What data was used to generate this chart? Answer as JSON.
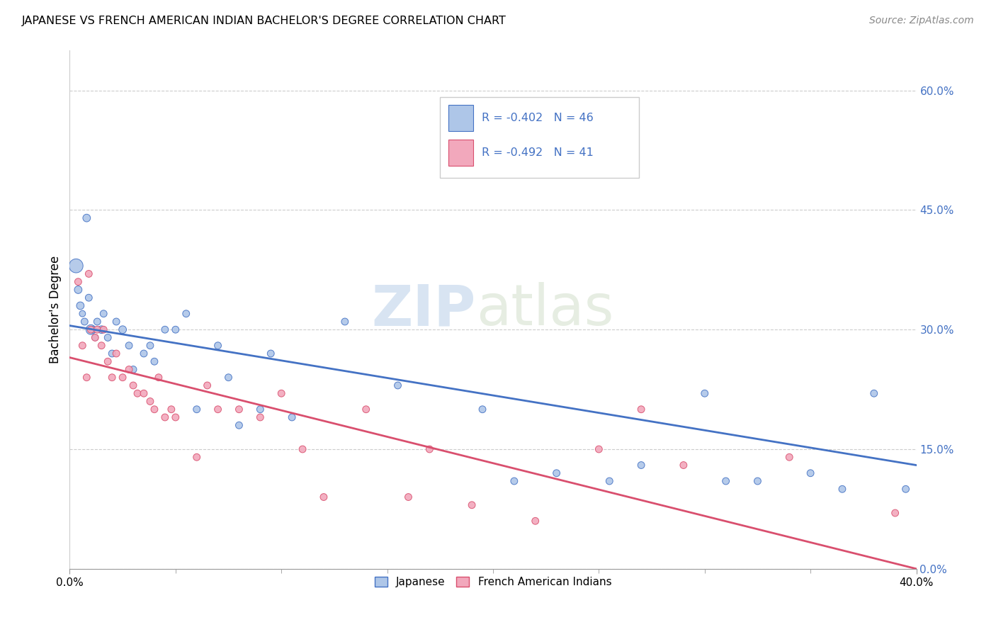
{
  "title": "JAPANESE VS FRENCH AMERICAN INDIAN BACHELOR'S DEGREE CORRELATION CHART",
  "source": "Source: ZipAtlas.com",
  "ylabel": "Bachelor's Degree",
  "watermark_zip": "ZIP",
  "watermark_atlas": "atlas",
  "legend_label_1": "Japanese",
  "legend_label_2": "French American Indians",
  "R1": -0.402,
  "N1": 46,
  "R2": -0.492,
  "N2": 41,
  "color_japanese": "#aec6e8",
  "color_french": "#f2a8bc",
  "color_line_japanese": "#4472c4",
  "color_line_french": "#d94f6e",
  "color_text_blue": "#4472c4",
  "xlim": [
    0.0,
    0.4
  ],
  "ylim": [
    0.0,
    0.65
  ],
  "yticks": [
    0.0,
    0.15,
    0.3,
    0.45,
    0.6
  ],
  "line_j_x0": 0.0,
  "line_j_y0": 0.305,
  "line_j_x1": 0.4,
  "line_j_y1": 0.13,
  "line_f_x0": 0.0,
  "line_f_y0": 0.265,
  "line_f_x1": 0.4,
  "line_f_y1": 0.0,
  "japanese_x": [
    0.003,
    0.004,
    0.005,
    0.006,
    0.007,
    0.008,
    0.009,
    0.01,
    0.011,
    0.012,
    0.013,
    0.015,
    0.016,
    0.018,
    0.02,
    0.022,
    0.025,
    0.028,
    0.03,
    0.035,
    0.038,
    0.04,
    0.045,
    0.05,
    0.055,
    0.06,
    0.07,
    0.075,
    0.08,
    0.09,
    0.095,
    0.105,
    0.13,
    0.155,
    0.195,
    0.21,
    0.23,
    0.255,
    0.27,
    0.3,
    0.31,
    0.325,
    0.35,
    0.365,
    0.38,
    0.395
  ],
  "japanese_y": [
    0.38,
    0.35,
    0.33,
    0.32,
    0.31,
    0.44,
    0.34,
    0.3,
    0.3,
    0.29,
    0.31,
    0.3,
    0.32,
    0.29,
    0.27,
    0.31,
    0.3,
    0.28,
    0.25,
    0.27,
    0.28,
    0.26,
    0.3,
    0.3,
    0.32,
    0.2,
    0.28,
    0.24,
    0.18,
    0.2,
    0.27,
    0.19,
    0.31,
    0.23,
    0.2,
    0.11,
    0.12,
    0.11,
    0.13,
    0.22,
    0.11,
    0.11,
    0.12,
    0.1,
    0.22,
    0.1
  ],
  "japanese_sizes": [
    200,
    60,
    60,
    40,
    50,
    60,
    50,
    100,
    50,
    40,
    50,
    60,
    50,
    50,
    50,
    50,
    60,
    50,
    50,
    50,
    50,
    50,
    50,
    50,
    50,
    50,
    50,
    50,
    50,
    50,
    50,
    50,
    50,
    50,
    50,
    50,
    50,
    50,
    50,
    50,
    50,
    50,
    50,
    50,
    50,
    50
  ],
  "french_x": [
    0.004,
    0.006,
    0.008,
    0.009,
    0.01,
    0.012,
    0.013,
    0.015,
    0.016,
    0.018,
    0.02,
    0.022,
    0.025,
    0.028,
    0.03,
    0.032,
    0.035,
    0.038,
    0.04,
    0.042,
    0.045,
    0.048,
    0.05,
    0.06,
    0.065,
    0.07,
    0.08,
    0.09,
    0.1,
    0.11,
    0.12,
    0.14,
    0.16,
    0.17,
    0.19,
    0.22,
    0.25,
    0.27,
    0.29,
    0.34,
    0.39
  ],
  "french_y": [
    0.36,
    0.28,
    0.24,
    0.37,
    0.3,
    0.29,
    0.3,
    0.28,
    0.3,
    0.26,
    0.24,
    0.27,
    0.24,
    0.25,
    0.23,
    0.22,
    0.22,
    0.21,
    0.2,
    0.24,
    0.19,
    0.2,
    0.19,
    0.14,
    0.23,
    0.2,
    0.2,
    0.19,
    0.22,
    0.15,
    0.09,
    0.2,
    0.09,
    0.15,
    0.08,
    0.06,
    0.15,
    0.2,
    0.13,
    0.14,
    0.07
  ],
  "french_sizes": [
    50,
    50,
    50,
    50,
    50,
    50,
    50,
    50,
    50,
    50,
    50,
    50,
    50,
    50,
    50,
    50,
    50,
    50,
    50,
    50,
    50,
    50,
    50,
    50,
    50,
    50,
    50,
    50,
    50,
    50,
    50,
    50,
    50,
    50,
    50,
    50,
    50,
    50,
    50,
    50,
    50
  ]
}
